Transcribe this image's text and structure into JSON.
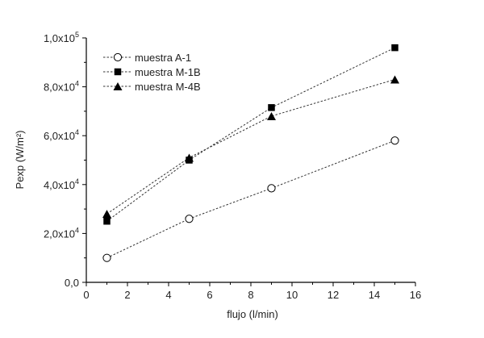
{
  "chart_data": {
    "type": "scatter",
    "title": "",
    "xlabel": "flujo (l/min)",
    "ylabel": "Pexp (W/m²)",
    "xlim": [
      0,
      16
    ],
    "ylim": [
      0,
      100000
    ],
    "x_ticks": [
      0,
      2,
      4,
      6,
      8,
      10,
      12,
      14,
      16
    ],
    "x_tick_labels": [
      "0",
      "2",
      "4",
      "6",
      "8",
      "10",
      "12",
      "14",
      "16"
    ],
    "y_ticks": [
      0,
      20000,
      40000,
      60000,
      80000,
      100000
    ],
    "y_tick_labels": [
      {
        "mantissa": "0,0",
        "exp": ""
      },
      {
        "mantissa": "2,0x10",
        "exp": "4"
      },
      {
        "mantissa": "4,0x10",
        "exp": "4"
      },
      {
        "mantissa": "6,0x10",
        "exp": "4"
      },
      {
        "mantissa": "8,0x10",
        "exp": "4"
      },
      {
        "mantissa": "1,0x10",
        "exp": "5"
      }
    ],
    "legend_position": "top-left",
    "series": [
      {
        "name": "muestra A-1",
        "marker": "circle-open",
        "x": [
          1,
          5,
          9,
          15
        ],
        "y": [
          10000,
          26000,
          38500,
          58000
        ]
      },
      {
        "name": "muestra M-1B",
        "marker": "square-filled",
        "x": [
          1,
          5,
          9,
          15
        ],
        "y": [
          25000,
          50000,
          71500,
          96000
        ]
      },
      {
        "name": "muestra M-4B",
        "marker": "triangle-filled",
        "x": [
          1,
          5,
          9,
          15
        ],
        "y": [
          28000,
          51000,
          68000,
          83000
        ]
      }
    ],
    "colors": {
      "axis": "#000000",
      "line": "#333333",
      "marker": "#000000",
      "text": "#222222"
    }
  }
}
